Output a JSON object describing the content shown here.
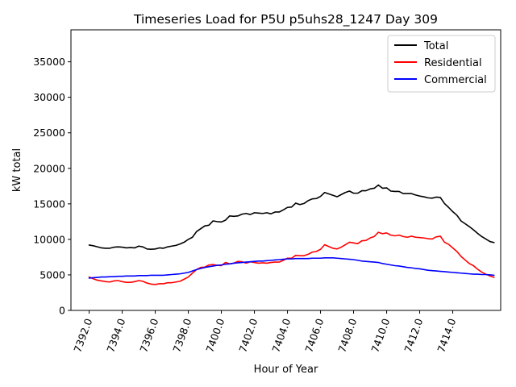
{
  "chart_data": {
    "type": "line",
    "title": "Timeseries Load for P5U p5uhs28_1247  Day 309",
    "xlabel": "Hour of Year",
    "ylabel": "kW total",
    "xlim": [
      7390.9,
      7416.9
    ],
    "ylim": [
      0,
      39500
    ],
    "xticks": [
      7392,
      7394,
      7396,
      7398,
      7400,
      7402,
      7404,
      7406,
      7408,
      7410,
      7412,
      7414
    ],
    "xtick_labels": [
      "7392.0",
      "7394.0",
      "7396.0",
      "7398.0",
      "7400.0",
      "7402.0",
      "7404.0",
      "7406.0",
      "7408.0",
      "7410.0",
      "7412.0",
      "7414.0"
    ],
    "yticks": [
      0,
      5000,
      10000,
      15000,
      20000,
      25000,
      30000,
      35000
    ],
    "ytick_labels": [
      "0",
      "5000",
      "10000",
      "15000",
      "20000",
      "25000",
      "30000",
      "35000"
    ],
    "legend_position": "top-right",
    "x_start": 7392.0,
    "x_step": 0.25,
    "series": [
      {
        "name": "Total",
        "color": "#000000",
        "values": [
          9200,
          9100,
          8950,
          8800,
          8750,
          8750,
          8900,
          8950,
          8900,
          8800,
          8850,
          8800,
          9050,
          8950,
          8650,
          8600,
          8650,
          8800,
          8750,
          8950,
          9050,
          9150,
          9350,
          9600,
          10000,
          10300,
          11100,
          11500,
          11900,
          12000,
          12600,
          12500,
          12450,
          12700,
          13300,
          13250,
          13300,
          13550,
          13650,
          13500,
          13750,
          13700,
          13650,
          13750,
          13600,
          13850,
          13850,
          14150,
          14500,
          14550,
          15100,
          14900,
          15050,
          15450,
          15700,
          15750,
          16050,
          16600,
          16400,
          16200,
          16000,
          16300,
          16600,
          16800,
          16500,
          16500,
          16850,
          16850,
          17100,
          17200,
          17650,
          17200,
          17250,
          16800,
          16750,
          16750,
          16450,
          16450,
          16450,
          16250,
          16100,
          16000,
          15850,
          15800,
          15950,
          15900,
          15050,
          14500,
          13900,
          13400,
          12600,
          12200,
          11800,
          11350,
          10850,
          10400,
          10050,
          9700,
          9550
        ]
      },
      {
        "name": "Residential",
        "color": "#ff0000",
        "values": [
          4700,
          4450,
          4250,
          4150,
          4050,
          4000,
          4150,
          4200,
          4050,
          3950,
          3950,
          4050,
          4200,
          4100,
          3850,
          3700,
          3650,
          3750,
          3750,
          3900,
          3900,
          4000,
          4100,
          4400,
          4700,
          5250,
          5750,
          6050,
          6100,
          6400,
          6450,
          6350,
          6300,
          6750,
          6550,
          6650,
          6900,
          6850,
          6650,
          6850,
          6750,
          6650,
          6700,
          6650,
          6750,
          6800,
          6800,
          7050,
          7350,
          7350,
          7750,
          7700,
          7700,
          7900,
          8200,
          8300,
          8600,
          9250,
          9000,
          8750,
          8650,
          8900,
          9250,
          9600,
          9500,
          9400,
          9800,
          9850,
          10200,
          10400,
          11000,
          10800,
          10900,
          10600,
          10500,
          10600,
          10400,
          10300,
          10450,
          10300,
          10250,
          10200,
          10100,
          10050,
          10350,
          10450,
          9600,
          9300,
          8800,
          8300,
          7600,
          7100,
          6600,
          6300,
          5800,
          5400,
          5100,
          4850,
          4650
        ]
      },
      {
        "name": "Commercial",
        "color": "#0000ff",
        "values": [
          4550,
          4600,
          4650,
          4700,
          4700,
          4750,
          4750,
          4800,
          4800,
          4850,
          4850,
          4850,
          4900,
          4900,
          4900,
          4950,
          4950,
          4950,
          4950,
          5000,
          5050,
          5100,
          5150,
          5250,
          5350,
          5550,
          5750,
          5900,
          6050,
          6150,
          6250,
          6350,
          6400,
          6500,
          6550,
          6650,
          6700,
          6750,
          6800,
          6850,
          6900,
          6950,
          6950,
          7000,
          7050,
          7100,
          7150,
          7200,
          7250,
          7250,
          7300,
          7300,
          7300,
          7300,
          7350,
          7350,
          7350,
          7400,
          7400,
          7400,
          7350,
          7300,
          7250,
          7200,
          7150,
          7050,
          6950,
          6900,
          6850,
          6800,
          6750,
          6600,
          6500,
          6400,
          6300,
          6250,
          6150,
          6050,
          6000,
          5900,
          5850,
          5750,
          5650,
          5600,
          5550,
          5500,
          5450,
          5400,
          5350,
          5300,
          5250,
          5200,
          5150,
          5100,
          5100,
          5050,
          5050,
          5000,
          4950
        ]
      }
    ]
  }
}
